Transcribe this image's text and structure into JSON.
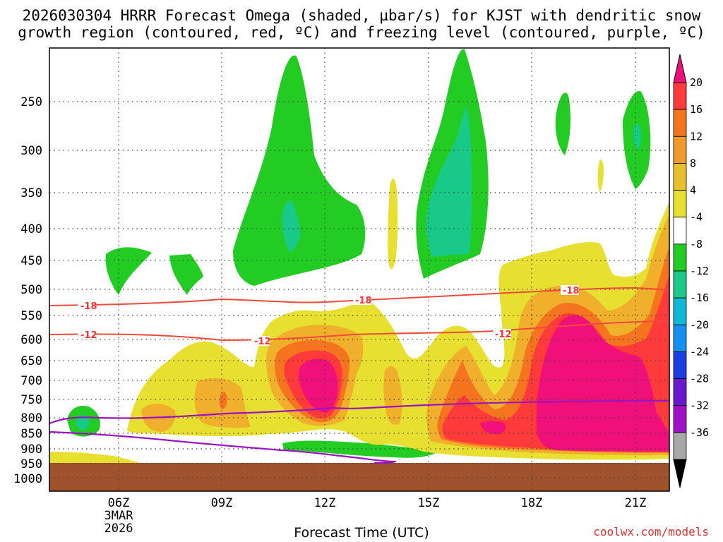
{
  "chart_data": {
    "type": "heatmap",
    "title_line1": "2026030304 HRRR Forecast Omega (shaded, µbar/s) for KJST with dendritic snow",
    "title_line2": "growth region (contoured, red, ºC) and freezing level (contoured, purple, ºC)",
    "xlabel": "Forecast Time (UTC)",
    "x_range_hours": [
      4,
      22
    ],
    "x_ticks": [
      {
        "hour": 6,
        "label": "06Z",
        "sub1": "3MAR",
        "sub2": "2026"
      },
      {
        "hour": 9,
        "label": "09Z",
        "sub1": "",
        "sub2": ""
      },
      {
        "hour": 12,
        "label": "12Z",
        "sub1": "",
        "sub2": ""
      },
      {
        "hour": 15,
        "label": "15Z",
        "sub1": "",
        "sub2": ""
      },
      {
        "hour": 18,
        "label": "18Z",
        "sub1": "",
        "sub2": ""
      },
      {
        "hour": 21,
        "label": "21Z",
        "sub1": "",
        "sub2": ""
      }
    ],
    "y_ticks": [
      "250",
      "300",
      "350",
      "400",
      "450",
      "500",
      "550",
      "600",
      "650",
      "700",
      "750",
      "800",
      "850",
      "900",
      "950",
      "1000"
    ],
    "colorbar": {
      "labels": [
        "20",
        "16",
        "12",
        "8",
        "4",
        "-4",
        "-8",
        "-12",
        "-16",
        "-20",
        "-24",
        "-28",
        "-32",
        "-36"
      ],
      "colors": [
        "#ff3a3a",
        "#f4741f",
        "#f09a2c",
        "#e8c02e",
        "#e8e030",
        "#ffffff",
        "#22cc22",
        "#18c98a",
        "#10b8d8",
        "#1490f0",
        "#1a3ee0",
        "#6a18d0",
        "#a010c8",
        "#a8a8a8"
      ],
      "top_color": "#f0107a",
      "bottom_color": "#000000"
    },
    "contours": {
      "dgz_labels": [
        "-18",
        "-18",
        "-18",
        "-12",
        "-12",
        "-12"
      ],
      "dgz_color": "#f04a3a",
      "freezing_color": "#9a14c0"
    },
    "terrain_color": "#a0522d",
    "credit": "coolwx.com/models"
  }
}
